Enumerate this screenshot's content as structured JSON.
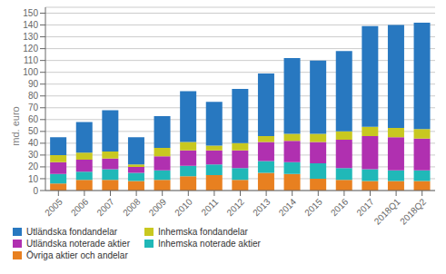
{
  "chart_data": {
    "type": "bar",
    "stacked": true,
    "grid": true,
    "legend": "bottom",
    "ylabel": "md. euro",
    "categories": [
      "2005",
      "2006",
      "2007",
      "2008",
      "2009",
      "2010",
      "2011",
      "2012",
      "2013",
      "2014",
      "2015",
      "2016",
      "2017",
      "2018Q1",
      "2018Q2"
    ],
    "series": [
      {
        "name": "Övriga aktier och andelar",
        "color": "#E88020",
        "values": [
          6,
          9,
          9,
          8,
          9,
          12,
          13,
          9,
          15,
          14,
          10,
          9,
          8,
          8,
          8
        ]
      },
      {
        "name": "Inhemska noterade aktier",
        "color": "#20B8B8",
        "values": [
          8,
          7,
          9,
          7,
          8,
          9,
          9,
          10,
          10,
          10,
          13,
          10,
          10,
          9,
          9
        ]
      },
      {
        "name": "Utländska noterade aktier",
        "color": "#B030B0",
        "values": [
          10,
          10,
          9,
          5,
          12,
          13,
          12,
          15,
          16,
          18,
          18,
          24,
          28,
          28,
          27
        ]
      },
      {
        "name": "Inhemska fondandelar",
        "color": "#C8C820",
        "values": [
          6,
          6,
          6,
          2,
          7,
          7,
          4,
          6,
          5,
          6,
          7,
          7,
          8,
          8,
          8
        ]
      },
      {
        "name": "Utländska fondandelar",
        "color": "#2878C0",
        "values": [
          15,
          26,
          35,
          23,
          27,
          43,
          37,
          46,
          53,
          64,
          62,
          68,
          85,
          87,
          90
        ]
      }
    ],
    "ylim": [
      0,
      155
    ],
    "yticks": [
      0,
      10,
      20,
      30,
      40,
      50,
      60,
      70,
      80,
      90,
      100,
      110,
      120,
      130,
      140,
      150
    ]
  }
}
